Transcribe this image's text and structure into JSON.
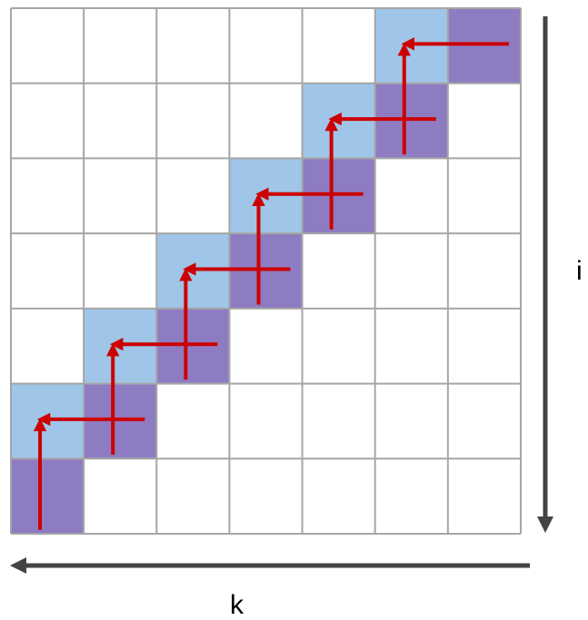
{
  "grid": {
    "rows": 7,
    "cols": 7,
    "line_color": "#a6a6a6",
    "background": "#ffffff"
  },
  "colors": {
    "current_cell": "#8e7cc3",
    "dependency_cell": "#9fc5e8",
    "arrow": "#cc0000",
    "axis": "#434343"
  },
  "cells": {
    "current": [
      [
        0,
        6
      ],
      [
        1,
        5
      ],
      [
        2,
        4
      ],
      [
        3,
        3
      ],
      [
        4,
        2
      ],
      [
        5,
        1
      ],
      [
        6,
        0
      ]
    ],
    "dependency": [
      [
        0,
        5
      ],
      [
        1,
        4
      ],
      [
        2,
        3
      ],
      [
        3,
        2
      ],
      [
        4,
        1
      ],
      [
        5,
        0
      ]
    ]
  },
  "axes": {
    "vertical_label": "i",
    "horizontal_label": "k"
  }
}
